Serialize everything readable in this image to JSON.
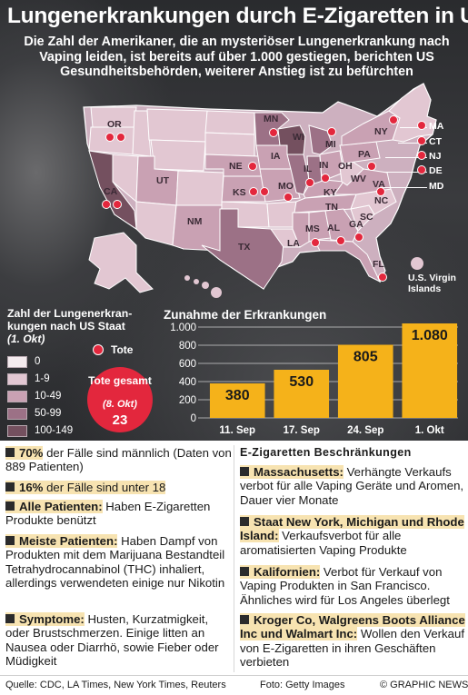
{
  "title": "Lungenerkrankungen durch E-Zigaretten in USA",
  "intro": "Die Zahl der Amerikaner, die an mysteriöser Lungenerkrankung nach Vaping leiden, ist bereits auf über 1.000 gestiegen, berichten US Gesundheitsbehörden, weiterer Anstieg ist zu befürchten",
  "states": [
    "OR",
    "CA",
    "UT",
    "NM",
    "TX",
    "MN",
    "WI",
    "MI",
    "NY",
    "IA",
    "IL",
    "IN",
    "OH",
    "PA",
    "NE",
    "KS",
    "MO",
    "KY",
    "WV",
    "VA",
    "NC",
    "TN",
    "SC",
    "GA",
    "AL",
    "MS",
    "LA",
    "FL"
  ],
  "east_states": [
    "MA",
    "CT",
    "NJ",
    "DE",
    "MD"
  ],
  "virgin_islands": "U.S. Virgin Islands",
  "legend": {
    "title": "Zahl der Lungenerkran-kungen nach US Staat",
    "date": "(1. Okt)",
    "bins": [
      "0",
      "1-9",
      "10-49",
      "50-99",
      "100-149"
    ],
    "bin_colors": [
      "#f4ebee",
      "#e2c7d2",
      "#c9a1b3",
      "#9c7186",
      "#74505f"
    ],
    "deaths_label": "Tote",
    "deaths_total_label": "Tote gesamt",
    "deaths_total_date": "(8. Okt)",
    "deaths_total_value": "23"
  },
  "chart_title": "Zunahme der Erkrankungen",
  "chart_data": {
    "type": "bar",
    "categories": [
      "11. Sep",
      "17. Sep",
      "24. Sep",
      "1. Okt"
    ],
    "values": [
      380,
      530,
      805,
      1080
    ],
    "value_labels": [
      "380",
      "530",
      "805",
      "1.080"
    ],
    "yticks": [
      0,
      200,
      400,
      600,
      800,
      1000
    ],
    "ytick_labels": [
      "0",
      "200",
      "400",
      "600",
      "800",
      "1.000"
    ],
    "ylim": [
      0,
      1000
    ],
    "bar_color": "#f5b21a"
  },
  "left_items": [
    {
      "bold": "70%",
      "text": " der Fälle sind männlich (Daten von 889 Patienten)"
    },
    {
      "bold": "16%",
      "text": " der Fälle sind unter 18"
    },
    {
      "bold": "Alle Patienten:",
      "text": " Haben E-Zigaretten Produkte benützt"
    },
    {
      "bold": "Meiste Patienten:",
      "text": " Haben Dampf von Produkten mit dem Marijuana Bestandteil Tetrahydrocannabinol (THC) inhaliert, allerdings verwendeten einige nur Nikotin"
    },
    {
      "bold": "Symptome:",
      "text": " Husten, Kurzatmigkeit, oder Brustschmerzen. Einige litten an Nausea oder Diarrhö, sowie Fieber oder Müdigkeit"
    }
  ],
  "right_heading": "E-Zigaretten Beschränkungen",
  "right_items": [
    {
      "bold": "Massachusetts:",
      "text": " Verhängte Verkaufs verbot für alle Vaping Geräte und Aromen, Dauer vier Monate"
    },
    {
      "bold": "Staat New York, Michigan und Rhode Island:",
      "text": " Verkaufsverbot für alle aromatisierten Vaping Produkte"
    },
    {
      "bold": "Kalifornien:",
      "text": " Verbot für Verkauf von Vaping Produkten in San Francisco. Ähnliches wird für Los Angeles überlegt"
    },
    {
      "bold": "Kroger Co, Walgreens Boots Alliance Inc und Walmart Inc:",
      "text": " Wollen den Verkauf von E-Zigaretten in ihren Geschäften verbieten"
    }
  ],
  "watermark": "GRAPHIC NEWS",
  "footer": {
    "source": "Quelle: CDC, LA Times, New York Times, Reuters",
    "photo": "Foto: Getty Images",
    "copyright": "© GRAPHIC NEWS"
  }
}
